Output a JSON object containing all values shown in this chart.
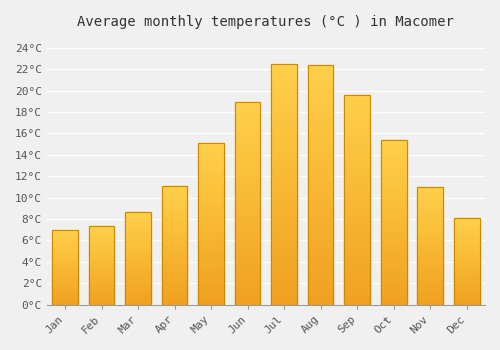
{
  "title": "Average monthly temperatures (°C ) in Macomer",
  "months": [
    "Jan",
    "Feb",
    "Mar",
    "Apr",
    "May",
    "Jun",
    "Jul",
    "Aug",
    "Sep",
    "Oct",
    "Nov",
    "Dec"
  ],
  "values": [
    7.0,
    7.3,
    8.7,
    11.1,
    15.1,
    18.9,
    22.5,
    22.4,
    19.6,
    15.4,
    11.0,
    8.1
  ],
  "bar_color_top": "#FFD04A",
  "bar_color_bottom": "#F0A020",
  "bar_edge_color": "#CC8800",
  "ylim": [
    0,
    25
  ],
  "ytick_vals": [
    0,
    2,
    4,
    6,
    8,
    10,
    12,
    14,
    16,
    18,
    20,
    22,
    24
  ],
  "ytick_labels": [
    "0°C",
    "2°C",
    "4°C",
    "6°C",
    "8°C",
    "10°C",
    "12°C",
    "14°C",
    "16°C",
    "18°C",
    "20°C",
    "22°C",
    "24°C"
  ],
  "background_color": "#F0F0F0",
  "grid_color": "#FFFFFF",
  "title_fontsize": 10,
  "tick_fontsize": 8,
  "bar_width": 0.7
}
